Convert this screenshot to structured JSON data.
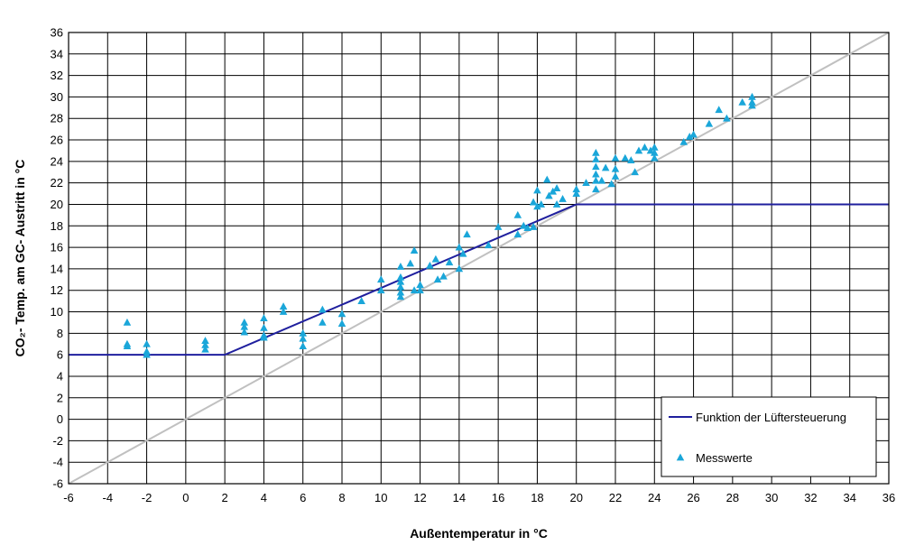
{
  "chart_data": {
    "type": "scatter",
    "xlabel": "Außentemperatur in °C",
    "ylabel": "CO₂- Temp. am GC- Austritt in °C",
    "xlim": [
      -6,
      36
    ],
    "ylim": [
      -6,
      36
    ],
    "xticks": [
      -6,
      -4,
      -2,
      0,
      2,
      4,
      6,
      8,
      10,
      12,
      14,
      16,
      18,
      20,
      22,
      24,
      26,
      28,
      30,
      32,
      34,
      36
    ],
    "yticks": [
      -6,
      -4,
      -2,
      0,
      2,
      4,
      6,
      8,
      10,
      12,
      14,
      16,
      18,
      20,
      22,
      24,
      26,
      28,
      30,
      32,
      34,
      36
    ],
    "grid": true,
    "legend_position": "bottom-right",
    "reference_line": {
      "points": [
        [
          -6,
          -6
        ],
        [
          36,
          36
        ]
      ],
      "color": "#c0c0c0"
    },
    "series": [
      {
        "name": "Funktion der Lüftersteuerung",
        "kind": "line",
        "color": "#1f1f9e",
        "points": [
          [
            -6,
            6
          ],
          [
            2,
            6
          ],
          [
            20,
            20
          ],
          [
            36,
            20
          ]
        ]
      },
      {
        "name": "Messwerte",
        "kind": "scatter",
        "marker": "triangle",
        "color": "#1aa6d9",
        "points": [
          [
            -3,
            9
          ],
          [
            -3,
            7
          ],
          [
            -3,
            6.8
          ],
          [
            -2,
            7
          ],
          [
            -2,
            6.3
          ],
          [
            -2,
            6
          ],
          [
            1,
            7.3
          ],
          [
            1,
            6.9
          ],
          [
            1,
            6.5
          ],
          [
            3,
            9
          ],
          [
            3,
            8.6
          ],
          [
            3,
            8.1
          ],
          [
            4,
            9.4
          ],
          [
            4,
            8.5
          ],
          [
            4,
            7.8
          ],
          [
            4,
            7.6
          ],
          [
            5,
            10.5
          ],
          [
            5,
            10
          ],
          [
            6,
            8
          ],
          [
            6,
            7.5
          ],
          [
            6,
            6.8
          ],
          [
            7,
            10.2
          ],
          [
            7,
            9
          ],
          [
            8,
            9.8
          ],
          [
            8,
            8.9
          ],
          [
            9,
            11
          ],
          [
            10,
            13
          ],
          [
            10,
            12
          ],
          [
            11,
            14.2
          ],
          [
            11,
            13.2
          ],
          [
            11,
            12.8
          ],
          [
            11,
            12.3
          ],
          [
            11,
            11.8
          ],
          [
            11,
            11.4
          ],
          [
            11.5,
            14.5
          ],
          [
            11.7,
            15.7
          ],
          [
            11.7,
            12
          ],
          [
            12,
            12.5
          ],
          [
            12,
            12
          ],
          [
            12.5,
            14.3
          ],
          [
            12.8,
            14.9
          ],
          [
            12.9,
            13
          ],
          [
            13.2,
            13.3
          ],
          [
            13.5,
            14.6
          ],
          [
            14,
            16
          ],
          [
            14,
            14
          ],
          [
            14.2,
            15.4
          ],
          [
            14.4,
            17.2
          ],
          [
            15.5,
            16.2
          ],
          [
            16,
            17.9
          ],
          [
            17,
            19
          ],
          [
            17,
            17.2
          ],
          [
            17.3,
            18
          ],
          [
            17.5,
            17.8
          ],
          [
            17.8,
            17.9
          ],
          [
            17.8,
            20.2
          ],
          [
            18,
            21.3
          ],
          [
            18,
            19.8
          ],
          [
            18.2,
            20
          ],
          [
            18.5,
            22.3
          ],
          [
            18.6,
            20.8
          ],
          [
            18.8,
            21.2
          ],
          [
            19,
            21.5
          ],
          [
            19,
            20
          ],
          [
            19.3,
            20.5
          ],
          [
            20,
            21.4
          ],
          [
            20,
            21
          ],
          [
            20.5,
            22
          ],
          [
            21,
            24.8
          ],
          [
            21,
            24.2
          ],
          [
            21,
            23.5
          ],
          [
            21,
            22.8
          ],
          [
            21,
            22.2
          ],
          [
            21,
            21.4
          ],
          [
            21.3,
            22.2
          ],
          [
            21.5,
            23.4
          ],
          [
            21.8,
            21.9
          ],
          [
            22,
            24.3
          ],
          [
            22,
            23.3
          ],
          [
            22,
            22.6
          ],
          [
            22.5,
            24.3
          ],
          [
            22.8,
            24.1
          ],
          [
            23,
            23
          ],
          [
            23.2,
            25
          ],
          [
            23.5,
            25.3
          ],
          [
            23.8,
            25
          ],
          [
            24,
            25.3
          ],
          [
            24,
            24.8
          ],
          [
            24,
            24.3
          ],
          [
            25.5,
            25.8
          ],
          [
            25.8,
            26.3
          ],
          [
            26,
            26.5
          ],
          [
            26.8,
            27.5
          ],
          [
            27.3,
            28.8
          ],
          [
            27.7,
            28
          ],
          [
            28.5,
            29.5
          ],
          [
            29,
            30
          ],
          [
            29,
            29.5
          ],
          [
            29,
            29.2
          ]
        ]
      }
    ]
  }
}
